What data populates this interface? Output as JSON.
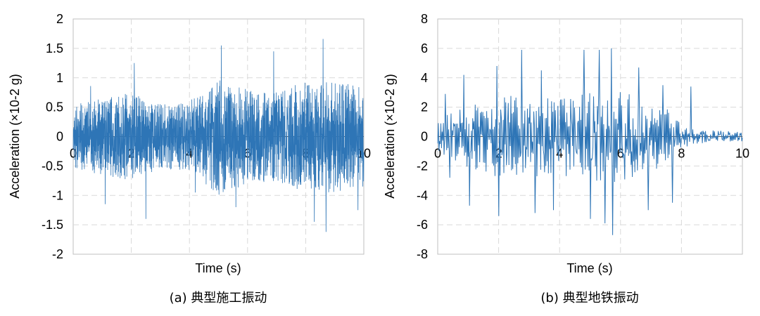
{
  "chart_data": [
    {
      "type": "line",
      "caption": "(a) 典型施工振动",
      "xlabel": "Time (s)",
      "ylabel": "Acceleration (×10-2 g)",
      "xlim": [
        0,
        10
      ],
      "ylim": [
        -2,
        2
      ],
      "x_ticks": [
        0,
        2,
        4,
        6,
        8,
        10
      ],
      "y_ticks": [
        -2,
        -1.5,
        -1,
        -0.5,
        0,
        0.5,
        1,
        1.5,
        2
      ],
      "x_tick_labels": [
        "0",
        "2",
        "4",
        "6",
        "8",
        "10"
      ],
      "y_tick_labels": [
        "-2",
        "-1.5",
        "-1",
        "-0.5",
        "0",
        "0.5",
        "1",
        "1.5",
        "2"
      ],
      "grid": true,
      "line_color": "#2E75B6",
      "peaks": [
        {
          "x": 0.6,
          "y": 0.86
        },
        {
          "x": 1.1,
          "y": -1.15
        },
        {
          "x": 2.1,
          "y": 1.25
        },
        {
          "x": 2.5,
          "y": -1.4
        },
        {
          "x": 4.2,
          "y": -0.95
        },
        {
          "x": 5.1,
          "y": 1.55
        },
        {
          "x": 5.6,
          "y": -1.2
        },
        {
          "x": 6.9,
          "y": 1.45
        },
        {
          "x": 8.3,
          "y": -1.45
        },
        {
          "x": 8.6,
          "y": 1.66
        },
        {
          "x": 8.7,
          "y": -1.62
        },
        {
          "x": 9.8,
          "y": -1.25
        }
      ],
      "envelope": [
        {
          "x": 0,
          "amp": 0.55
        },
        {
          "x": 1,
          "amp": 0.65
        },
        {
          "x": 2,
          "amp": 0.75
        },
        {
          "x": 3,
          "amp": 0.55
        },
        {
          "x": 4,
          "amp": 0.6
        },
        {
          "x": 5,
          "amp": 1.0
        },
        {
          "x": 6,
          "amp": 0.8
        },
        {
          "x": 7,
          "amp": 0.75
        },
        {
          "x": 8,
          "amp": 0.95
        },
        {
          "x": 9,
          "amp": 0.95
        },
        {
          "x": 10,
          "amp": 0.85
        }
      ]
    },
    {
      "type": "line",
      "caption": "(b) 典型地铁振动",
      "xlabel": "Time (s)",
      "ylabel": "Acceleration (×10-2 g)",
      "xlim": [
        0,
        10
      ],
      "ylim": [
        -8,
        8
      ],
      "x_ticks": [
        0,
        2,
        4,
        6,
        8,
        10
      ],
      "y_ticks": [
        -8,
        -6,
        -4,
        -2,
        0,
        2,
        4,
        6,
        8
      ],
      "x_tick_labels": [
        "0",
        "2",
        "4",
        "6",
        "8",
        "10"
      ],
      "y_tick_labels": [
        "-8",
        "-6",
        "-4",
        "-2",
        "0",
        "2",
        "4",
        "6",
        "8"
      ],
      "grid": true,
      "line_color": "#2E75B6",
      "peaks": [
        {
          "x": 0.25,
          "y": 2.9
        },
        {
          "x": 0.4,
          "y": -2.8
        },
        {
          "x": 0.85,
          "y": 4.2
        },
        {
          "x": 1.05,
          "y": -4.7
        },
        {
          "x": 1.95,
          "y": 4.8
        },
        {
          "x": 2.0,
          "y": -5.4
        },
        {
          "x": 2.75,
          "y": 5.9
        },
        {
          "x": 3.2,
          "y": -5.2
        },
        {
          "x": 3.4,
          "y": 4.5
        },
        {
          "x": 3.8,
          "y": -5.0
        },
        {
          "x": 4.8,
          "y": 5.9
        },
        {
          "x": 5.0,
          "y": -5.6
        },
        {
          "x": 5.3,
          "y": 5.9
        },
        {
          "x": 5.5,
          "y": -5.9
        },
        {
          "x": 5.7,
          "y": 6.0
        },
        {
          "x": 5.75,
          "y": -6.7
        },
        {
          "x": 6.6,
          "y": 4.7
        },
        {
          "x": 6.9,
          "y": -5.0
        },
        {
          "x": 7.4,
          "y": 3.5
        },
        {
          "x": 7.7,
          "y": -4.5
        },
        {
          "x": 8.3,
          "y": 3.4
        }
      ],
      "envelope": [
        {
          "x": 0,
          "amp": 1.2
        },
        {
          "x": 1,
          "amp": 2.2
        },
        {
          "x": 2,
          "amp": 2.8
        },
        {
          "x": 3,
          "amp": 2.8
        },
        {
          "x": 4,
          "amp": 2.6
        },
        {
          "x": 5,
          "amp": 3.2
        },
        {
          "x": 6,
          "amp": 3.2
        },
        {
          "x": 7,
          "amp": 2.4
        },
        {
          "x": 7.6,
          "amp": 1.8
        },
        {
          "x": 8,
          "amp": 0.8
        },
        {
          "x": 8.5,
          "amp": 0.5
        },
        {
          "x": 9,
          "amp": 0.45
        },
        {
          "x": 10,
          "amp": 0.35
        }
      ]
    }
  ]
}
